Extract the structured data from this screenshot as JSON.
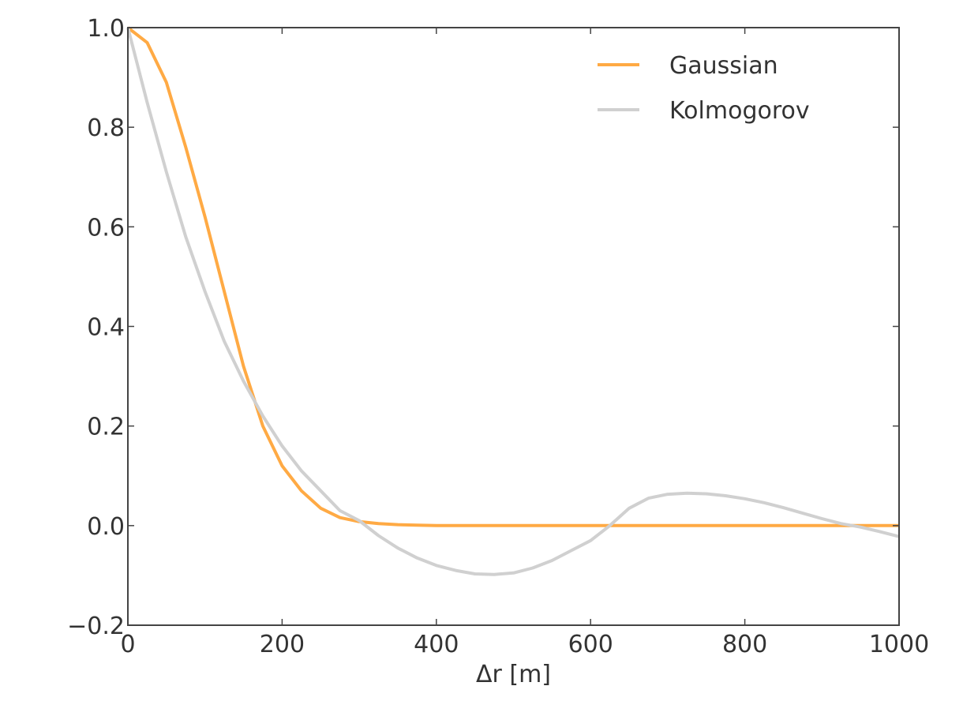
{
  "chart_data": {
    "type": "line",
    "title": "",
    "xlabel": "Δr [m]",
    "ylabel": "",
    "xlim": [
      0,
      1000
    ],
    "ylim": [
      -0.2,
      1.0
    ],
    "xticks": [
      "0",
      "200",
      "400",
      "600",
      "800",
      "1000"
    ],
    "xtick_values": [
      0,
      200,
      400,
      600,
      800,
      1000
    ],
    "yticks": [
      "−0.2",
      "0.0",
      "0.2",
      "0.4",
      "0.6",
      "0.8",
      "1.0"
    ],
    "ytick_values": [
      -0.2,
      0.0,
      0.2,
      0.4,
      0.6,
      0.8,
      1.0
    ],
    "grid": false,
    "legend": {
      "position": "top-right"
    },
    "series": [
      {
        "name": "Gaussian",
        "color": "#ffaa44",
        "x": [
          0,
          25,
          50,
          75,
          100,
          125,
          150,
          175,
          200,
          225,
          250,
          275,
          300,
          325,
          350,
          375,
          400,
          450,
          500,
          600,
          700,
          800,
          900,
          1000
        ],
        "y": [
          1.0,
          0.97,
          0.89,
          0.76,
          0.62,
          0.47,
          0.32,
          0.2,
          0.12,
          0.07,
          0.035,
          0.016,
          0.008,
          0.004,
          0.002,
          0.001,
          0.0,
          0.0,
          0.0,
          0.0,
          0.0,
          0.0,
          0.0,
          0.0
        ]
      },
      {
        "name": "Kolmogorov",
        "color": "#d0d0d0",
        "x": [
          0,
          25,
          50,
          75,
          100,
          125,
          150,
          175,
          200,
          225,
          250,
          275,
          300,
          325,
          350,
          375,
          400,
          425,
          450,
          475,
          500,
          525,
          550,
          575,
          600,
          625,
          650,
          675,
          700,
          725,
          750,
          775,
          800,
          825,
          850,
          875,
          900,
          925,
          950,
          975,
          1000
        ],
        "y": [
          1.0,
          0.85,
          0.71,
          0.58,
          0.47,
          0.37,
          0.29,
          0.22,
          0.16,
          0.11,
          0.07,
          0.03,
          0.01,
          -0.02,
          -0.045,
          -0.065,
          -0.08,
          -0.09,
          -0.097,
          -0.098,
          -0.095,
          -0.085,
          -0.07,
          -0.05,
          -0.03,
          0.0,
          0.035,
          0.055,
          0.063,
          0.065,
          0.064,
          0.06,
          0.054,
          0.046,
          0.036,
          0.025,
          0.014,
          0.004,
          -0.003,
          -0.012,
          -0.022
        ]
      }
    ]
  }
}
